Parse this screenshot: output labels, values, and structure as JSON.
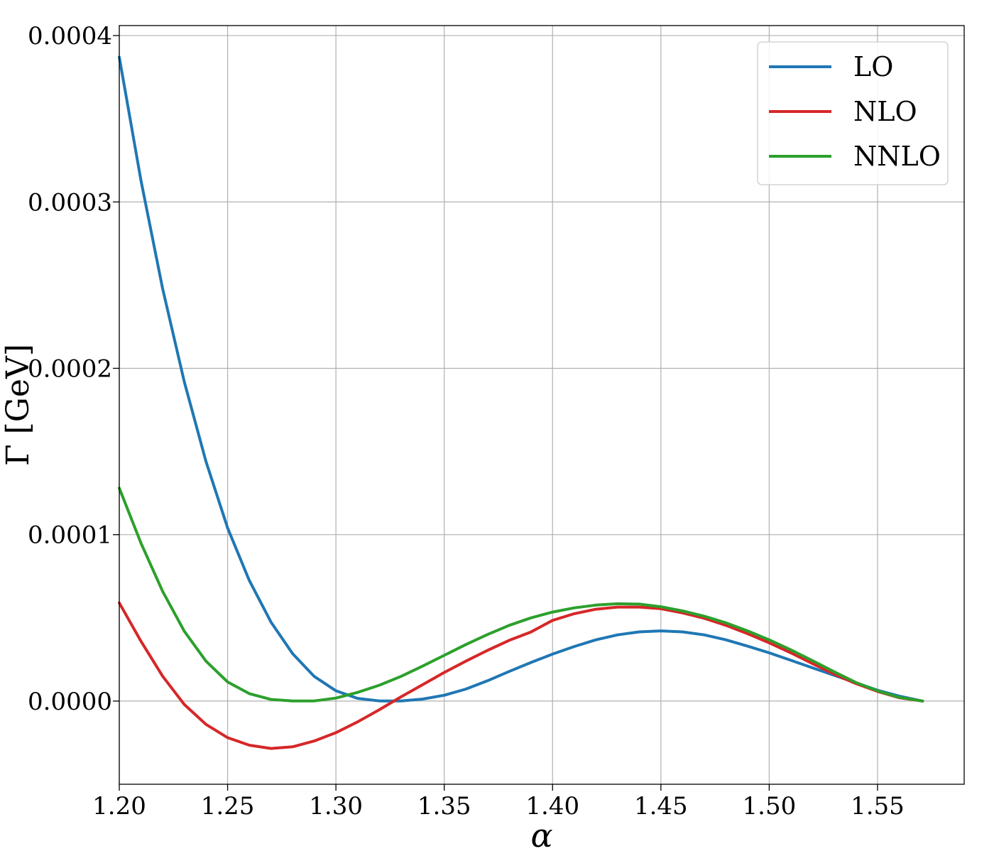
{
  "chart_data": {
    "type": "line",
    "xlabel": "α",
    "ylabel": "Γ [GeV]",
    "xlim": [
      1.2,
      1.59
    ],
    "ylim": [
      -5e-05,
      0.000406
    ],
    "grid": true,
    "legend_position": "top-right",
    "x_ticks": [
      1.2,
      1.25,
      1.3,
      1.35,
      1.4,
      1.45,
      1.5,
      1.55
    ],
    "x_tick_labels": [
      "1.20",
      "1.25",
      "1.30",
      "1.35",
      "1.40",
      "1.45",
      "1.50",
      "1.55"
    ],
    "y_ticks": [
      0.0,
      0.0001,
      0.0002,
      0.0003,
      0.0004
    ],
    "y_tick_labels": [
      "0.0000",
      "0.0001",
      "0.0002",
      "0.0003",
      "0.0004"
    ],
    "series": [
      {
        "name": "LO",
        "color": "#1f77b4",
        "x": [
          1.2,
          1.21,
          1.22,
          1.23,
          1.24,
          1.25,
          1.26,
          1.27,
          1.28,
          1.29,
          1.3,
          1.31,
          1.32,
          1.33,
          1.34,
          1.35,
          1.36,
          1.37,
          1.38,
          1.39,
          1.4,
          1.41,
          1.42,
          1.43,
          1.44,
          1.45,
          1.46,
          1.47,
          1.48,
          1.49,
          1.5,
          1.51,
          1.52,
          1.53,
          1.54,
          1.55,
          1.56,
          1.5708
        ],
        "y": [
          0.000387,
          0.000313,
          0.000248,
          0.000192,
          0.000144,
          0.000104,
          7.25e-05,
          4.75e-05,
          2.85e-05,
          1.48e-05,
          6.2e-06,
          1.6e-06,
          1e-07,
          1e-07,
          1.2e-06,
          3.5e-06,
          7.2e-06,
          1.22e-05,
          1.78e-05,
          2.32e-05,
          2.82e-05,
          3.28e-05,
          3.68e-05,
          3.98e-05,
          4.16e-05,
          4.22e-05,
          4.16e-05,
          3.98e-05,
          3.68e-05,
          3.3e-05,
          2.9e-05,
          2.45e-05,
          2e-05,
          1.55e-05,
          1.1e-05,
          6.5e-06,
          3e-06,
          0.0
        ]
      },
      {
        "name": "NLO",
        "color": "#d62728",
        "x": [
          1.2,
          1.21,
          1.22,
          1.23,
          1.24,
          1.25,
          1.26,
          1.27,
          1.28,
          1.29,
          1.3,
          1.31,
          1.32,
          1.33,
          1.34,
          1.35,
          1.36,
          1.37,
          1.38,
          1.39,
          1.4,
          1.41,
          1.42,
          1.43,
          1.44,
          1.45,
          1.46,
          1.47,
          1.48,
          1.49,
          1.5,
          1.51,
          1.52,
          1.53,
          1.54,
          1.55,
          1.56,
          1.5708
        ],
        "y": [
          5.9e-05,
          3.6e-05,
          1.5e-05,
          -2e-06,
          -1.4e-05,
          -2.2e-05,
          -2.65e-05,
          -2.85e-05,
          -2.75e-05,
          -2.4e-05,
          -1.9e-05,
          -1.25e-05,
          -5.2e-06,
          2.5e-06,
          9.8e-06,
          1.72e-05,
          2.4e-05,
          3.05e-05,
          3.65e-05,
          4.15e-05,
          4.85e-05,
          5.25e-05,
          5.52e-05,
          5.65e-05,
          5.65e-05,
          5.55e-05,
          5.3e-05,
          4.98e-05,
          4.55e-05,
          4.05e-05,
          3.5e-05,
          2.9e-05,
          2.25e-05,
          1.62e-05,
          1.05e-05,
          5.8e-06,
          2e-06,
          0.0
        ]
      },
      {
        "name": "NNLO",
        "color": "#2ca02c",
        "x": [
          1.2,
          1.21,
          1.22,
          1.23,
          1.24,
          1.25,
          1.26,
          1.27,
          1.28,
          1.29,
          1.3,
          1.31,
          1.32,
          1.33,
          1.34,
          1.35,
          1.36,
          1.37,
          1.38,
          1.39,
          1.4,
          1.41,
          1.42,
          1.43,
          1.44,
          1.45,
          1.46,
          1.47,
          1.48,
          1.49,
          1.5,
          1.51,
          1.52,
          1.53,
          1.54,
          1.55,
          1.56,
          1.5708
        ],
        "y": [
          0.000128,
          9.5e-05,
          6.6e-05,
          4.2e-05,
          2.4e-05,
          1.15e-05,
          4.5e-06,
          1e-06,
          1e-07,
          1e-07,
          1.8e-06,
          5.2e-06,
          9.5e-06,
          1.48e-05,
          2.1e-05,
          2.75e-05,
          3.4e-05,
          4e-05,
          4.55e-05,
          5e-05,
          5.35e-05,
          5.6e-05,
          5.77e-05,
          5.85e-05,
          5.83e-05,
          5.67e-05,
          5.42e-05,
          5.1e-05,
          4.7e-05,
          4.22e-05,
          3.68e-05,
          3.08e-05,
          2.43e-05,
          1.76e-05,
          1.12e-05,
          6.2e-06,
          2.2e-06,
          0.0
        ]
      }
    ]
  }
}
